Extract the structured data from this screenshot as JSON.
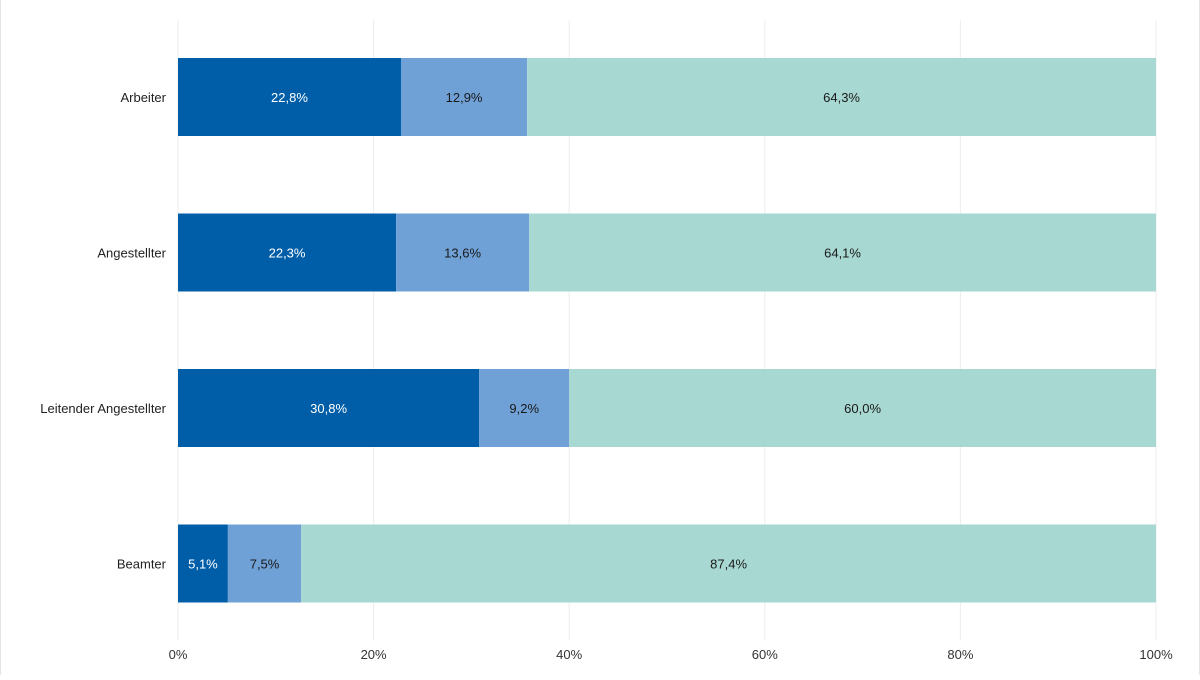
{
  "chart_data": {
    "type": "bar",
    "orientation": "horizontal",
    "stacked": true,
    "categories": [
      "Arbeiter",
      "Angestellter",
      "Leitender Angestellter",
      "Beamter"
    ],
    "series": [
      {
        "values": [
          22.8,
          22.3,
          30.8,
          5.1
        ],
        "labels": [
          "22,8%",
          "22,3%",
          "30,8%",
          "5,1%"
        ],
        "color": "#005ea8",
        "label_color": "#ffffff"
      },
      {
        "values": [
          12.9,
          13.6,
          9.2,
          7.5
        ],
        "labels": [
          "12,9%",
          "13,6%",
          "9,2%",
          "7,5%"
        ],
        "color": "#6fa0d6",
        "label_color": "#1a1a1a"
      },
      {
        "values": [
          64.3,
          64.1,
          60.0,
          87.4
        ],
        "labels": [
          "64,3%",
          "64,1%",
          "60,0%",
          "87,4%"
        ],
        "color": "#a8d8d2",
        "label_color": "#1a1a1a"
      }
    ],
    "xlim": [
      0,
      100
    ],
    "xticks": [
      0,
      20,
      40,
      60,
      80,
      100
    ],
    "xtick_labels": [
      "0%",
      "20%",
      "40%",
      "60%",
      "80%",
      "100%"
    ],
    "grid": true,
    "legend": "none",
    "title": "",
    "xlabel": "",
    "ylabel": ""
  }
}
